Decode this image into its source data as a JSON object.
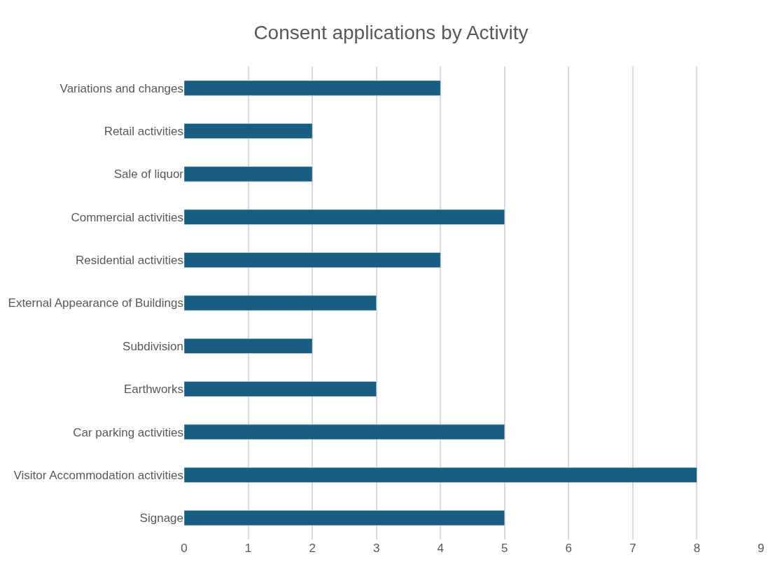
{
  "chart_data": {
    "type": "bar",
    "title": "Consent applications by Activity",
    "orientation": "horizontal",
    "categories": [
      "Variations and changes",
      "Retail activities",
      "Sale of liquor",
      "Commercial activities",
      "Residential activities",
      "External Appearance of Buildings",
      "Subdivision",
      "Earthworks",
      "Car parking activities",
      "Visitor Accommodation activities",
      "Signage"
    ],
    "values": [
      4,
      2,
      2,
      5,
      4,
      3,
      2,
      3,
      5,
      8,
      5
    ],
    "color": "#175e82",
    "xlim": [
      0,
      9
    ],
    "xticks": [
      0,
      1,
      2,
      3,
      4,
      5,
      6,
      7,
      8,
      9
    ],
    "grid": "x"
  }
}
